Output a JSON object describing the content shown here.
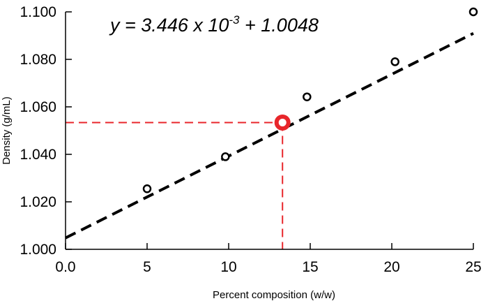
{
  "chart_data": {
    "type": "scatter",
    "xlabel": "Percent composition (w/w)",
    "ylabel": "Density (g/mL)",
    "xlim": [
      0,
      25
    ],
    "ylim": [
      1.0,
      1.1
    ],
    "x_ticks": [
      0,
      5,
      10,
      15,
      20,
      25
    ],
    "x_tick_labels": [
      "0.0",
      "5",
      "10",
      "15",
      "20",
      "25"
    ],
    "y_ticks": [
      1.0,
      1.02,
      1.04,
      1.06,
      1.08,
      1.1
    ],
    "y_tick_labels": [
      "1.000",
      "1.020",
      "1.040",
      "1.060",
      "1.080",
      "1.100"
    ],
    "grid": false,
    "series": [
      {
        "marker": "open-circle",
        "color": "#000000",
        "points": [
          {
            "x": 5.0,
            "y": 1.0255
          },
          {
            "x": 9.8,
            "y": 1.039
          },
          {
            "x": 14.8,
            "y": 1.0642
          },
          {
            "x": 20.2,
            "y": 1.079
          },
          {
            "x": 25.0,
            "y": 1.1
          }
        ]
      }
    ],
    "fit_line": {
      "slope": 0.003446,
      "intercept": 1.0048,
      "x_range": [
        0,
        25
      ],
      "style": "dashed",
      "color": "#000000"
    },
    "equation": {
      "y_var": "y",
      "equals": " = ",
      "coef": "3.446 x 10",
      "exponent": "-3",
      "rest": " + 1.0048"
    },
    "highlight": {
      "x": 13.3,
      "y": 1.0534,
      "color": "#e8262b",
      "guide_style": "dashed"
    }
  }
}
